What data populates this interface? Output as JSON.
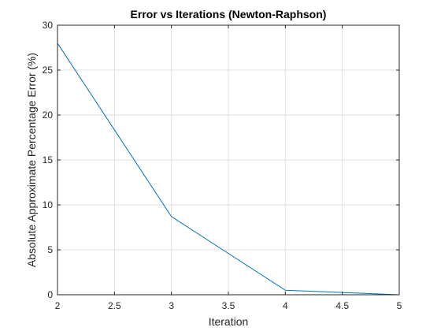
{
  "chart_data": {
    "type": "line",
    "title": "Error vs Iterations (Newton-Raphson)",
    "xlabel": "Iteration",
    "ylabel": "Absolute Approximate Percentage Error (%)",
    "xlim": [
      2,
      5
    ],
    "ylim": [
      0,
      30
    ],
    "xticks": [
      2,
      2.5,
      3,
      3.5,
      4,
      4.5,
      5
    ],
    "xtick_labels": [
      "2",
      "2.5",
      "3",
      "3.5",
      "4",
      "4.5",
      "5"
    ],
    "yticks": [
      0,
      5,
      10,
      15,
      20,
      25,
      30
    ],
    "ytick_labels": [
      "0",
      "5",
      "10",
      "15",
      "20",
      "25",
      "30"
    ],
    "grid": true,
    "series": [
      {
        "x": [
          2,
          3,
          4,
          5
        ],
        "y": [
          28.0,
          8.7,
          0.5,
          0.0
        ],
        "color": "#0072BD"
      }
    ]
  }
}
